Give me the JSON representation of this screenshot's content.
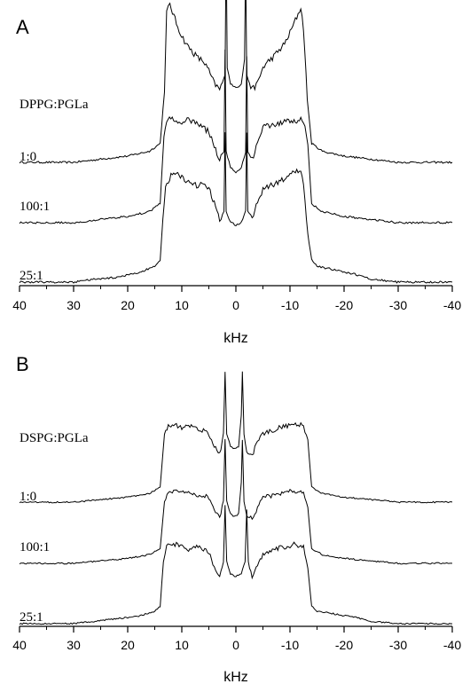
{
  "chart_data": [
    {
      "type": "line",
      "panel_label": "A",
      "header_label": "DPPG:PGLa",
      "xlabel": "kHz",
      "xlim": [
        40,
        -40
      ],
      "xticks": [
        "40",
        "30",
        "20",
        "10",
        "0",
        "-10",
        "-20",
        "-30",
        "-40"
      ],
      "series": [
        {
          "name": "1:0",
          "points": [
            [
              40,
              0.0
            ],
            [
              30,
              0.0
            ],
            [
              25,
              0.02
            ],
            [
              20,
              0.04
            ],
            [
              16,
              0.07
            ],
            [
              14,
              0.12
            ],
            [
              13.2,
              0.45
            ],
            [
              12.8,
              0.95
            ],
            [
              12.2,
              1.0
            ],
            [
              11,
              0.88
            ],
            [
              10,
              0.8
            ],
            [
              9,
              0.74
            ],
            [
              8,
              0.7
            ],
            [
              7,
              0.66
            ],
            [
              6,
              0.64
            ],
            [
              5,
              0.58
            ],
            [
              4,
              0.5
            ],
            [
              3,
              0.46
            ],
            [
              2,
              0.55
            ],
            [
              1.8,
              1.4
            ],
            [
              1.6,
              0.6
            ],
            [
              1.0,
              0.5
            ],
            [
              0.5,
              0.48
            ],
            [
              0,
              0.48
            ],
            [
              -0.5,
              0.48
            ],
            [
              -1.0,
              0.5
            ],
            [
              -1.6,
              0.65
            ],
            [
              -1.8,
              1.3
            ],
            [
              -2,
              0.55
            ],
            [
              -3,
              0.46
            ],
            [
              -4,
              0.5
            ],
            [
              -5,
              0.6
            ],
            [
              -6,
              0.64
            ],
            [
              -7,
              0.67
            ],
            [
              -8,
              0.71
            ],
            [
              -9,
              0.75
            ],
            [
              -10,
              0.82
            ],
            [
              -11,
              0.9
            ],
            [
              -12,
              0.98
            ],
            [
              -12.5,
              0.85
            ],
            [
              -13.2,
              0.4
            ],
            [
              -14,
              0.12
            ],
            [
              -16,
              0.07
            ],
            [
              -20,
              0.04
            ],
            [
              -25,
              0.02
            ],
            [
              -30,
              0.0
            ],
            [
              -40,
              0.0
            ]
          ]
        },
        {
          "name": "100:1",
          "points": [
            [
              40,
              0.0
            ],
            [
              30,
              0.0
            ],
            [
              25,
              0.02
            ],
            [
              20,
              0.04
            ],
            [
              16,
              0.07
            ],
            [
              14,
              0.12
            ],
            [
              13.3,
              0.55
            ],
            [
              12.8,
              0.65
            ],
            [
              11.5,
              0.66
            ],
            [
              10,
              0.64
            ],
            [
              9,
              0.66
            ],
            [
              8,
              0.64
            ],
            [
              7,
              0.62
            ],
            [
              6,
              0.6
            ],
            [
              5,
              0.58
            ],
            [
              4,
              0.48
            ],
            [
              3,
              0.4
            ],
            [
              2.2,
              0.45
            ],
            [
              2.0,
              1.1
            ],
            [
              1.8,
              0.45
            ],
            [
              1,
              0.35
            ],
            [
              0,
              0.32
            ],
            [
              -1,
              0.35
            ],
            [
              -1.8,
              0.45
            ],
            [
              -2.0,
              1.05
            ],
            [
              -2.2,
              0.45
            ],
            [
              -3,
              0.4
            ],
            [
              -4,
              0.5
            ],
            [
              -5,
              0.6
            ],
            [
              -6,
              0.62
            ],
            [
              -7,
              0.62
            ],
            [
              -8,
              0.63
            ],
            [
              -9,
              0.64
            ],
            [
              -10,
              0.64
            ],
            [
              -11,
              0.65
            ],
            [
              -12.5,
              0.65
            ],
            [
              -13.3,
              0.5
            ],
            [
              -14,
              0.12
            ],
            [
              -16,
              0.07
            ],
            [
              -20,
              0.04
            ],
            [
              -25,
              0.02
            ],
            [
              -30,
              0.0
            ],
            [
              -40,
              0.0
            ]
          ]
        },
        {
          "name": "25:1",
          "points": [
            [
              40,
              0.0
            ],
            [
              30,
              0.0
            ],
            [
              26,
              0.02
            ],
            [
              22,
              0.03
            ],
            [
              18,
              0.06
            ],
            [
              15,
              0.1
            ],
            [
              14,
              0.14
            ],
            [
              13.5,
              0.4
            ],
            [
              13,
              0.6
            ],
            [
              12,
              0.68
            ],
            [
              11,
              0.7
            ],
            [
              10,
              0.66
            ],
            [
              9,
              0.64
            ],
            [
              8,
              0.62
            ],
            [
              7,
              0.61
            ],
            [
              6,
              0.63
            ],
            [
              5,
              0.6
            ],
            [
              4,
              0.5
            ],
            [
              3,
              0.4
            ],
            [
              2.2,
              0.45
            ],
            [
              2.0,
              0.95
            ],
            [
              1.8,
              0.45
            ],
            [
              1,
              0.38
            ],
            [
              0,
              0.36
            ],
            [
              -1,
              0.38
            ],
            [
              -1.8,
              0.45
            ],
            [
              -2.0,
              0.95
            ],
            [
              -2.2,
              0.45
            ],
            [
              -3,
              0.4
            ],
            [
              -4,
              0.5
            ],
            [
              -5,
              0.58
            ],
            [
              -6,
              0.6
            ],
            [
              -7,
              0.62
            ],
            [
              -8,
              0.64
            ],
            [
              -9,
              0.66
            ],
            [
              -10,
              0.68
            ],
            [
              -11,
              0.7
            ],
            [
              -12,
              0.7
            ],
            [
              -12.5,
              0.6
            ],
            [
              -13.3,
              0.3
            ],
            [
              -14,
              0.14
            ],
            [
              -15,
              0.1
            ],
            [
              -18,
              0.08
            ],
            [
              -22,
              0.05
            ],
            [
              -25,
              0.02
            ],
            [
              -30,
              0.0
            ],
            [
              -40,
              0.0
            ]
          ]
        }
      ]
    },
    {
      "type": "line",
      "panel_label": "B",
      "header_label": "DSPG:PGLa",
      "xlabel": "kHz",
      "xlim": [
        40,
        -40
      ],
      "xticks": [
        "40",
        "30",
        "20",
        "10",
        "0",
        "-10",
        "-20",
        "-30",
        "-40"
      ],
      "series": [
        {
          "name": "1:0",
          "points": [
            [
              40,
              0.0
            ],
            [
              30,
              0.0
            ],
            [
              25,
              0.02
            ],
            [
              20,
              0.04
            ],
            [
              16,
              0.07
            ],
            [
              14,
              0.12
            ],
            [
              13.2,
              0.55
            ],
            [
              12.5,
              0.62
            ],
            [
              11,
              0.62
            ],
            [
              10,
              0.6
            ],
            [
              9,
              0.62
            ],
            [
              8,
              0.6
            ],
            [
              7,
              0.58
            ],
            [
              6,
              0.58
            ],
            [
              5,
              0.55
            ],
            [
              4,
              0.45
            ],
            [
              3,
              0.38
            ],
            [
              2.3,
              0.55
            ],
            [
              2.0,
              1.05
            ],
            [
              1.7,
              0.55
            ],
            [
              1,
              0.45
            ],
            [
              0.5,
              0.43
            ],
            [
              0,
              0.43
            ],
            [
              -0.5,
              0.45
            ],
            [
              -1.0,
              0.7
            ],
            [
              -1.2,
              1.05
            ],
            [
              -1.5,
              0.55
            ],
            [
              -2,
              0.4
            ],
            [
              -3,
              0.38
            ],
            [
              -4,
              0.48
            ],
            [
              -5,
              0.55
            ],
            [
              -6,
              0.57
            ],
            [
              -7,
              0.58
            ],
            [
              -8,
              0.6
            ],
            [
              -9,
              0.61
            ],
            [
              -10,
              0.62
            ],
            [
              -11,
              0.62
            ],
            [
              -12.5,
              0.62
            ],
            [
              -13.3,
              0.5
            ],
            [
              -14,
              0.12
            ],
            [
              -16,
              0.07
            ],
            [
              -20,
              0.04
            ],
            [
              -25,
              0.02
            ],
            [
              -30,
              0.0
            ],
            [
              -40,
              0.0
            ]
          ]
        },
        {
          "name": "100:1",
          "points": [
            [
              40,
              0.0
            ],
            [
              30,
              0.0
            ],
            [
              25,
              0.02
            ],
            [
              20,
              0.04
            ],
            [
              16,
              0.07
            ],
            [
              14,
              0.12
            ],
            [
              13.2,
              0.5
            ],
            [
              12.5,
              0.58
            ],
            [
              11,
              0.58
            ],
            [
              10,
              0.56
            ],
            [
              9,
              0.58
            ],
            [
              8,
              0.56
            ],
            [
              7,
              0.55
            ],
            [
              6,
              0.55
            ],
            [
              5,
              0.52
            ],
            [
              4,
              0.42
            ],
            [
              3,
              0.36
            ],
            [
              2.3,
              0.5
            ],
            [
              2.0,
              1.0
            ],
            [
              1.7,
              0.5
            ],
            [
              1,
              0.4
            ],
            [
              0.5,
              0.38
            ],
            [
              0,
              0.38
            ],
            [
              -0.5,
              0.4
            ],
            [
              -1.0,
              0.65
            ],
            [
              -1.2,
              1.0
            ],
            [
              -1.5,
              0.5
            ],
            [
              -2,
              0.38
            ],
            [
              -3,
              0.36
            ],
            [
              -4,
              0.45
            ],
            [
              -5,
              0.52
            ],
            [
              -6,
              0.54
            ],
            [
              -7,
              0.55
            ],
            [
              -8,
              0.56
            ],
            [
              -9,
              0.57
            ],
            [
              -10,
              0.58
            ],
            [
              -11,
              0.58
            ],
            [
              -12.5,
              0.58
            ],
            [
              -13.3,
              0.45
            ],
            [
              -14,
              0.12
            ],
            [
              -16,
              0.07
            ],
            [
              -20,
              0.04
            ],
            [
              -25,
              0.02
            ],
            [
              -30,
              0.0
            ],
            [
              -40,
              0.0
            ]
          ]
        },
        {
          "name": "25:1",
          "points": [
            [
              40,
              0.0
            ],
            [
              30,
              0.0
            ],
            [
              26,
              0.02
            ],
            [
              22,
              0.04
            ],
            [
              18,
              0.06
            ],
            [
              15,
              0.1
            ],
            [
              14,
              0.14
            ],
            [
              13.4,
              0.5
            ],
            [
              12.8,
              0.62
            ],
            [
              11,
              0.64
            ],
            [
              10,
              0.62
            ],
            [
              9,
              0.6
            ],
            [
              8,
              0.6
            ],
            [
              7,
              0.62
            ],
            [
              6,
              0.6
            ],
            [
              5,
              0.58
            ],
            [
              4,
              0.46
            ],
            [
              3,
              0.38
            ],
            [
              2.3,
              0.5
            ],
            [
              2.0,
              0.95
            ],
            [
              1.7,
              0.5
            ],
            [
              1,
              0.4
            ],
            [
              0,
              0.38
            ],
            [
              -1,
              0.4
            ],
            [
              -1.7,
              0.5
            ],
            [
              -2.0,
              0.92
            ],
            [
              -2.3,
              0.5
            ],
            [
              -3,
              0.38
            ],
            [
              -4,
              0.48
            ],
            [
              -5,
              0.56
            ],
            [
              -6,
              0.58
            ],
            [
              -7,
              0.6
            ],
            [
              -8,
              0.61
            ],
            [
              -9,
              0.62
            ],
            [
              -10,
              0.63
            ],
            [
              -11,
              0.64
            ],
            [
              -12.5,
              0.62
            ],
            [
              -13.3,
              0.45
            ],
            [
              -14,
              0.14
            ],
            [
              -15,
              0.1
            ],
            [
              -18,
              0.08
            ],
            [
              -22,
              0.05
            ],
            [
              -25,
              0.02
            ],
            [
              -30,
              0.0
            ],
            [
              -40,
              0.0
            ]
          ]
        }
      ]
    }
  ]
}
